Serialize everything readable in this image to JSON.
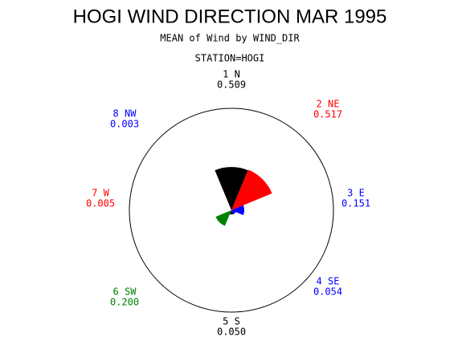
{
  "chart_data": {
    "type": "windrose",
    "title": "HOGI WIND DIRECTION MAR 1995",
    "subtitle": "MEAN of Wind by WIND_DIR",
    "station": "STATION=HOGI",
    "categories": [
      "1 N",
      "2 NE",
      "3 E",
      "4 SE",
      "5 S",
      "6 SW",
      "7 W",
      "8 NW"
    ],
    "values": [
      0.509,
      0.517,
      0.151,
      0.054,
      0.05,
      0.2,
      0.005,
      0.003
    ],
    "value_labels": [
      "0.509",
      "0.517",
      "0.151",
      "0.054",
      "0.050",
      "0.200",
      "0.005",
      "0.003"
    ],
    "colors": [
      "#000000",
      "#ff0000",
      "#0000ff",
      "#0000ff",
      "#000000",
      "#008000",
      "#ff0000",
      "#0000ff"
    ],
    "rlim": [
      0,
      1.2
    ]
  }
}
